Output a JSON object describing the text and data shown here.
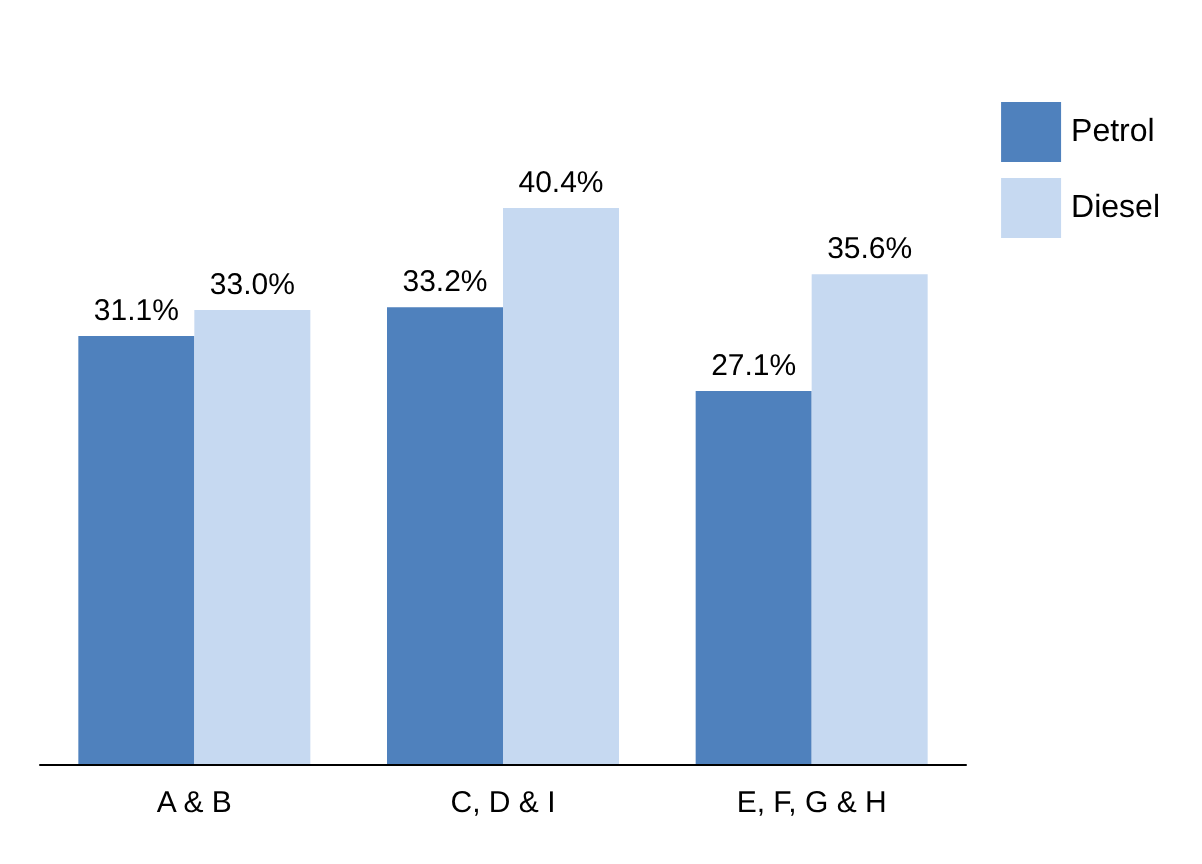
{
  "chart_data": {
    "type": "bar",
    "categories": [
      "A & B",
      "C, D & I",
      "E, F, G & H"
    ],
    "series": [
      {
        "name": "Petrol",
        "color": "#4f81bd",
        "values": [
          31.1,
          33.2,
          27.1
        ],
        "value_labels": [
          "31.1%",
          "33.2%",
          "27.1%"
        ]
      },
      {
        "name": "Diesel",
        "color": "#c6d9f1",
        "values": [
          33.0,
          40.4,
          35.6
        ],
        "value_labels": [
          "33.0%",
          "40.4%",
          "35.6%"
        ]
      }
    ],
    "legend": "right"
  }
}
